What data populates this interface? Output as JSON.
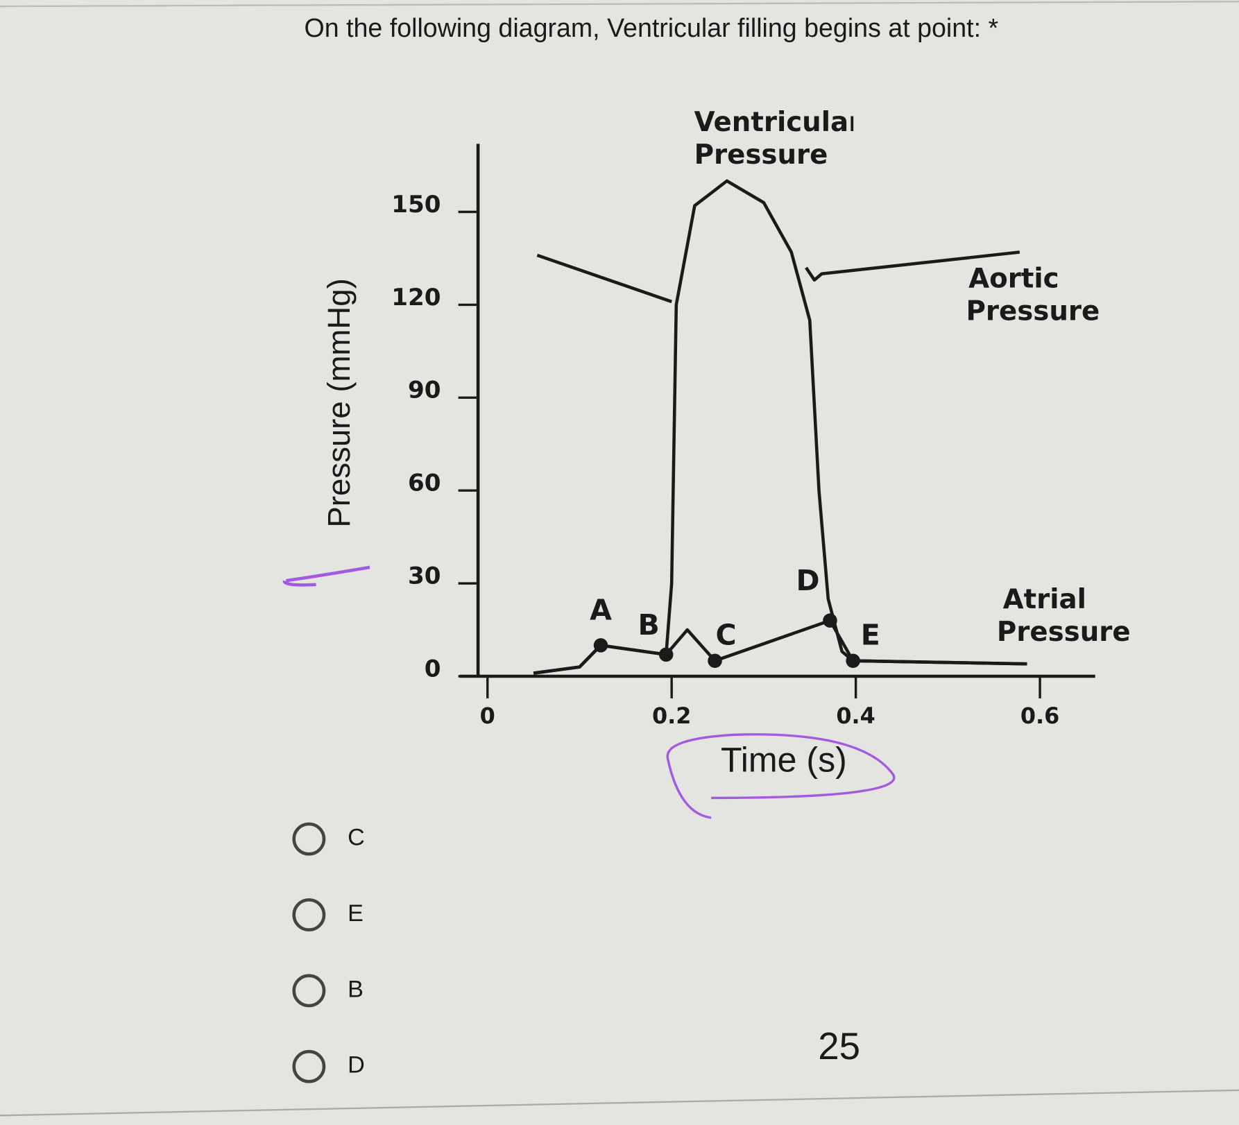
{
  "question": "On the following diagram, Ventricular filling begins at point: *",
  "chart_data": {
    "type": "line",
    "x_label": "Time (s)",
    "y_label": "Pressure (mmHg)",
    "xlim": [
      -0.03,
      0.66
    ],
    "ylim": [
      0,
      172
    ],
    "xticks": [
      0,
      0.2,
      0.4,
      0.6
    ],
    "yticks": [
      0,
      30,
      60,
      90,
      120,
      150
    ],
    "color": "#1a1a1a",
    "series": [
      {
        "name": "Ventricular Pressure",
        "x": [
          0.05,
          0.1,
          0.123,
          0.194,
          0.2,
          0.205,
          0.225,
          0.26,
          0.3,
          0.33,
          0.35,
          0.36,
          0.37,
          0.385,
          0.397,
          0.586
        ],
        "values": [
          1,
          3,
          10,
          7,
          30,
          120,
          152,
          160,
          153,
          137,
          115,
          60,
          25,
          8,
          5,
          4
        ]
      },
      {
        "name": "Aortic Pressure",
        "x": [
          0.054,
          0.2,
          0.27,
          0.346,
          0.355,
          0.363,
          0.578
        ],
        "values": [
          136,
          121,
          null,
          132,
          128,
          130,
          137
        ]
      },
      {
        "name": "Atrial Pressure",
        "x": [
          0.05,
          0.1,
          0.123,
          0.194,
          0.217,
          0.247,
          0.372,
          0.397,
          0.586
        ],
        "values": [
          1,
          3,
          10,
          7,
          15,
          5,
          18,
          5,
          4
        ]
      }
    ],
    "points": [
      {
        "label": "A",
        "x": 0.123,
        "y": 10
      },
      {
        "label": "B",
        "x": 0.194,
        "y": 7
      },
      {
        "label": "C",
        "x": 0.247,
        "y": 5
      },
      {
        "label": "D",
        "x": 0.372,
        "y": 18
      },
      {
        "label": "E",
        "x": 0.397,
        "y": 5
      }
    ]
  },
  "options": [
    "C",
    "E",
    "B",
    "D"
  ],
  "page_number": "25"
}
